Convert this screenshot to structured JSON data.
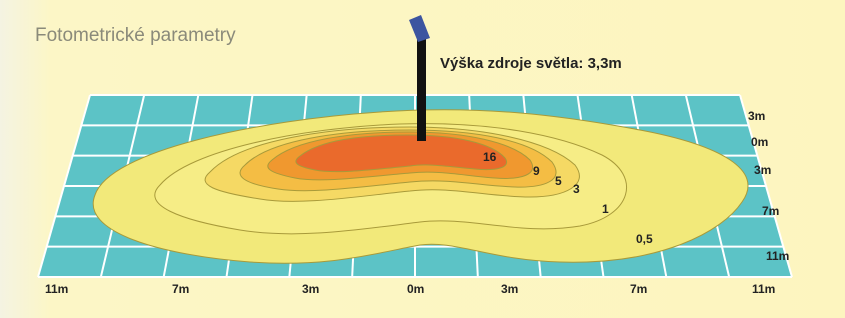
{
  "header": {
    "title": "Fotometrické parametry"
  },
  "source_height": "Výška zdroje světla: 3,3m",
  "contour_labels": [
    "16",
    "9",
    "5",
    "3",
    "1",
    "0,5"
  ],
  "x_axis_labels": [
    "11m",
    "7m",
    "3m",
    "0m",
    "3m",
    "7m",
    "11m"
  ],
  "y_axis_labels": [
    "3m",
    "0m",
    "3m",
    "7m",
    "11m"
  ]
}
